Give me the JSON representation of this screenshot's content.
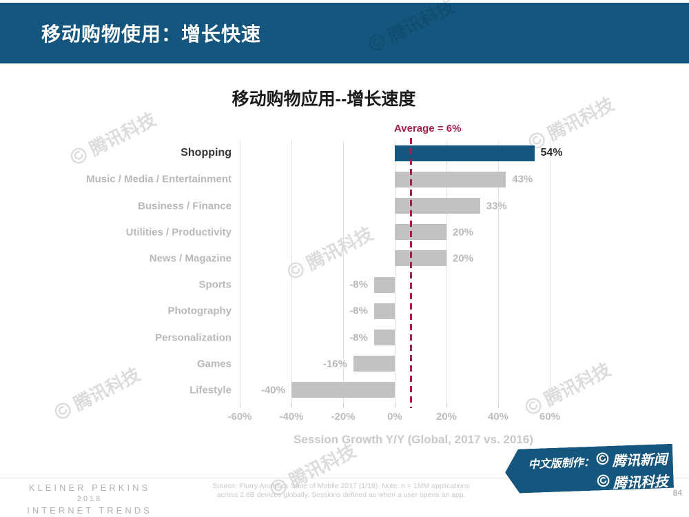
{
  "header": {
    "title": "移动购物使用：增长快速"
  },
  "chart_data": {
    "type": "bar",
    "orientation": "horizontal",
    "title": "移动购物应用--增长速度",
    "categories": [
      "Shopping",
      "Music / Media / Entertainment",
      "Business / Finance",
      "Utilities / Productivity",
      "News / Magazine",
      "Sports",
      "Photography",
      "Personalization",
      "Games",
      "Lifestyle"
    ],
    "values": [
      54,
      43,
      33,
      20,
      20,
      -8,
      -8,
      -8,
      -16,
      -40
    ],
    "value_labels": [
      "54%",
      "43%",
      "33%",
      "20%",
      "20%",
      "-8%",
      "-8%",
      "-8%",
      "-16%",
      "-40%"
    ],
    "highlight_index": 0,
    "average_label": "Average = 6%",
    "average_value": 6,
    "xlabel": "Session Growth Y/Y (Global, 2017 vs. 2016)",
    "xlim": [
      -60,
      60
    ],
    "x_ticks": [
      {
        "value": -60,
        "label": "-60%"
      },
      {
        "value": -40,
        "label": "-40%"
      },
      {
        "value": -20,
        "label": "-20%"
      },
      {
        "value": 0,
        "label": "0%"
      },
      {
        "value": 20,
        "label": "20%"
      },
      {
        "value": 40,
        "label": "40%"
      },
      {
        "value": 60,
        "label": "60%"
      }
    ],
    "grid": true,
    "legend": "none",
    "colors": {
      "highlight_bar": "#14567E",
      "bar": "#C2C2C2",
      "average_line": "#A52048",
      "header_bg": "#14567E"
    }
  },
  "watermark": {
    "text": "腾讯科技"
  },
  "footer": {
    "brand_line1": "KLEINER PERKINS",
    "brand_line2": "2018",
    "brand_line3": "INTERNET TRENDS",
    "source_line1": "Source: Flurry Analytics State of Mobile 2017 (1/18).  Note: n = 1MM applications",
    "source_line2": "across 2.6B devices globally. Sessions defined as when a user opens an app.",
    "page_number": "84",
    "credit": {
      "label": "中文版制作：",
      "brand1": "腾讯新闻",
      "brand2": "腾讯科技"
    }
  }
}
